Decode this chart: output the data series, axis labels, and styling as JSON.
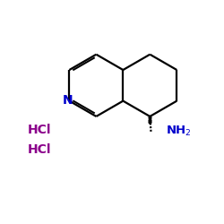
{
  "background_color": "#ffffff",
  "hcl_color": "#8B008B",
  "n_color": "#0000cc",
  "nh2_color": "#0000cc",
  "bond_color": "#000000",
  "bond_width": 1.6,
  "figsize": [
    2.5,
    2.5
  ],
  "dpi": 100,
  "xlim": [
    0,
    10
  ],
  "ylim": [
    0,
    10
  ]
}
